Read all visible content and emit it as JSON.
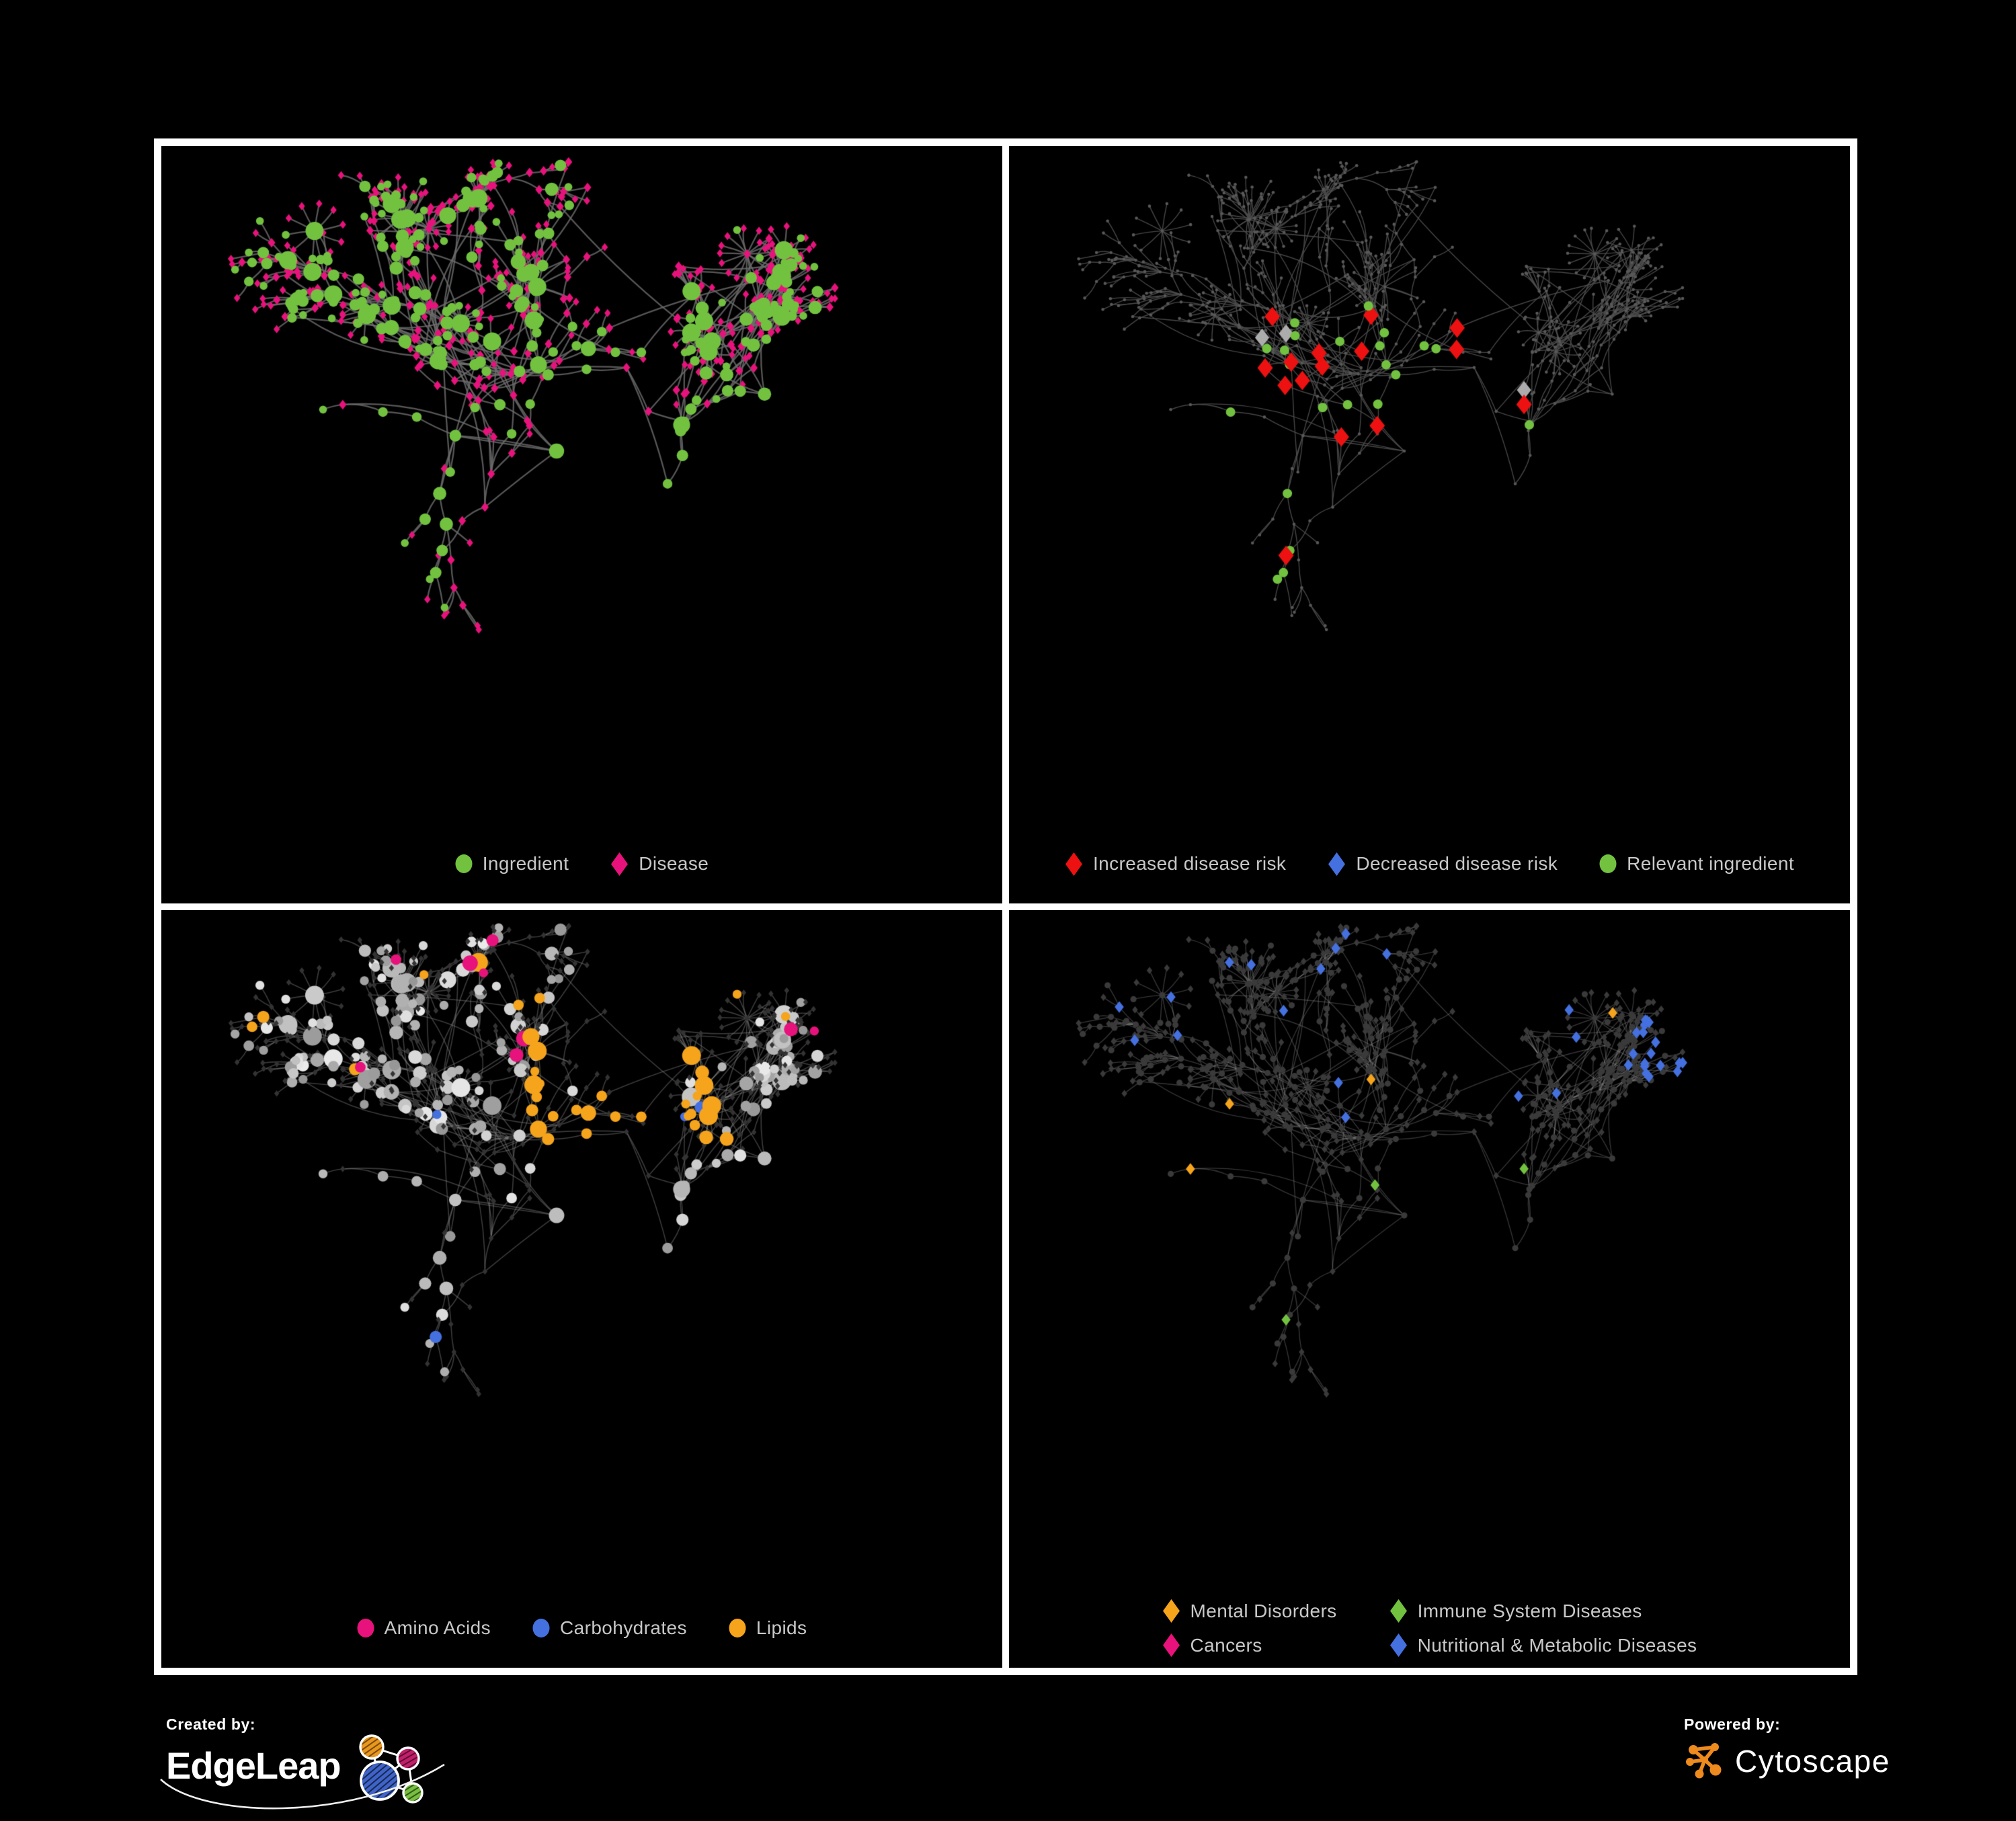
{
  "figure": {
    "background": "#000000",
    "frame_color": "#FFFFFF"
  },
  "colors": {
    "green": "#72C240",
    "pink": "#E8127C",
    "red": "#ED1111",
    "blue": "#4470E0",
    "orange": "#F5A41C",
    "silver": "#ACACAC",
    "dim_dot": "#585858",
    "charcoal": "#333333",
    "dark_node": "#3A3A3A",
    "edge_strong": "#6E6E6E",
    "edge_dim": "#4E4E4E",
    "edge_light": "#8C8C8C",
    "edge_faint": "#9A9A9A",
    "legend_text": "#C8C8C8"
  },
  "panels": [
    {
      "name": "ingredients-and-diseases",
      "legend_layout": "row",
      "legend": [
        {
          "label": "Ingredient",
          "shape": "circle",
          "color": "green"
        },
        {
          "label": "Disease",
          "shape": "diamond",
          "color": "pink"
        }
      ]
    },
    {
      "name": "disease-risk",
      "legend_layout": "row",
      "legend": [
        {
          "label": "Increased disease risk",
          "shape": "diamond",
          "color": "red"
        },
        {
          "label": "Decreased disease risk",
          "shape": "diamond",
          "color": "blue"
        },
        {
          "label": "Relevant ingredient",
          "shape": "circle",
          "color": "green"
        }
      ]
    },
    {
      "name": "ingredient-classes",
      "legend_layout": "row",
      "legend": [
        {
          "label": "Amino Acids",
          "shape": "circle",
          "color": "pink"
        },
        {
          "label": "Carbohydrates",
          "shape": "circle",
          "color": "blue"
        },
        {
          "label": "Lipids",
          "shape": "circle",
          "color": "orange"
        }
      ]
    },
    {
      "name": "disease-classes",
      "legend_layout": "grid2",
      "legend": [
        {
          "label": "Mental Disorders",
          "shape": "diamond",
          "color": "orange"
        },
        {
          "label": "Cancers",
          "shape": "diamond",
          "color": "pink"
        },
        {
          "label": "Immune System Diseases",
          "shape": "diamond",
          "color": "green"
        },
        {
          "label": "Nutritional & Metabolic Diseases",
          "shape": "diamond",
          "color": "blue"
        }
      ]
    }
  ],
  "footer": {
    "created_by_label": "Created by:",
    "created_by_brand": "EdgeLeap",
    "powered_by_label": "Powered by:",
    "powered_by_brand": "Cytoscape"
  }
}
